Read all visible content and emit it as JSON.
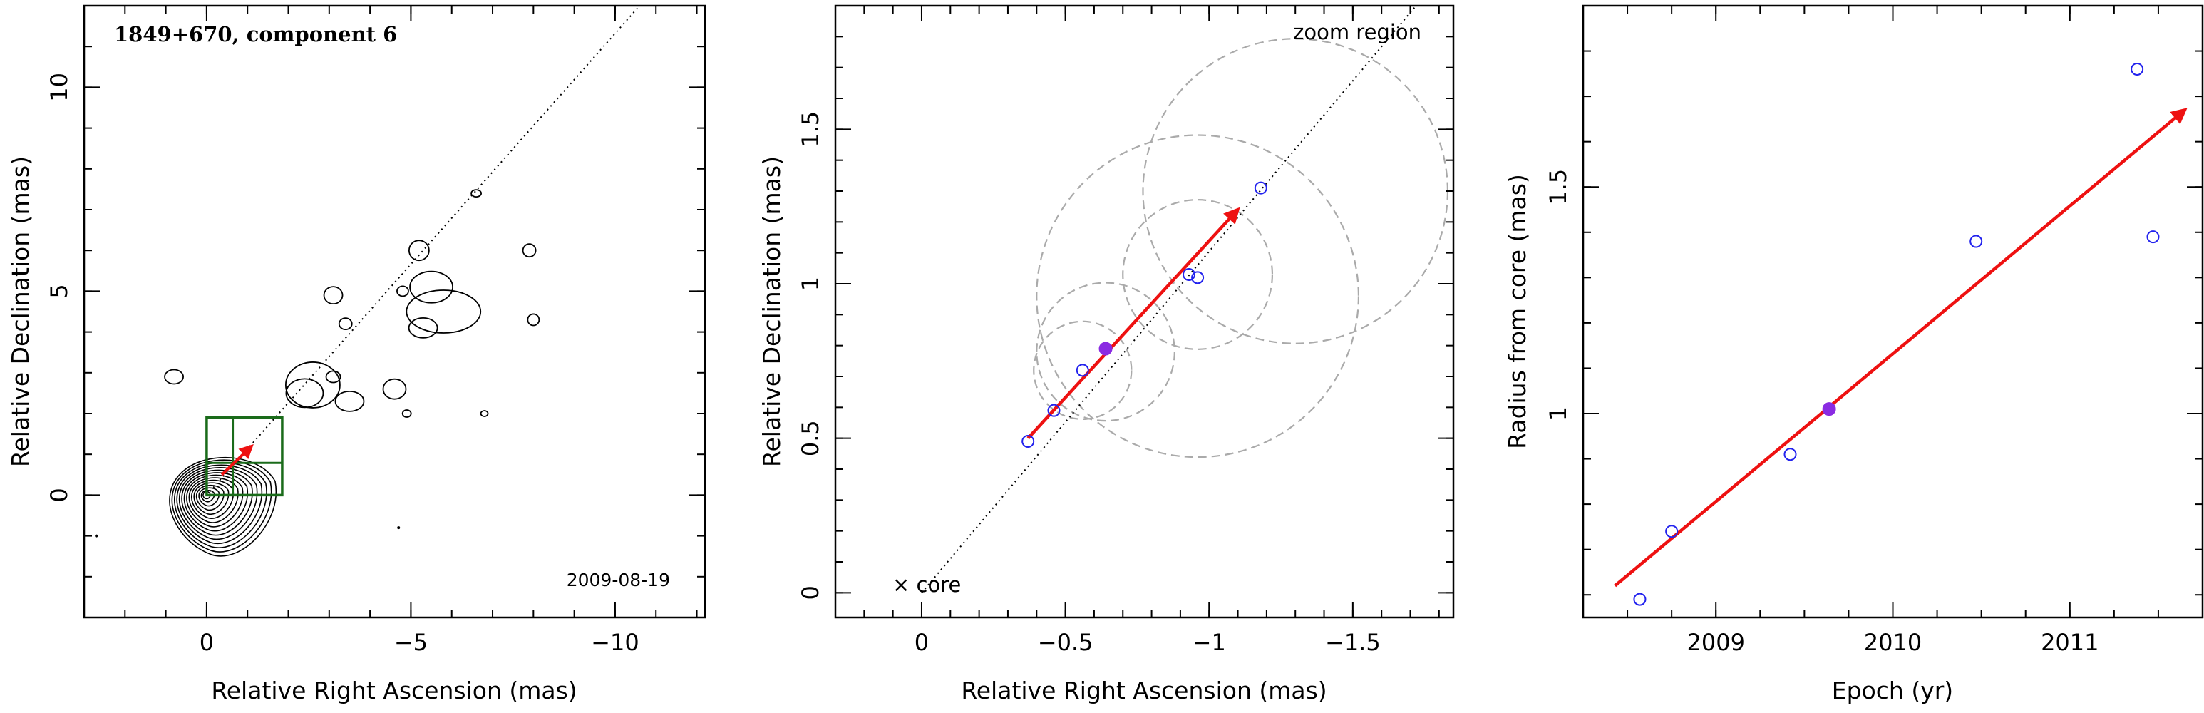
{
  "panels": {
    "map": {
      "title": "1849+670, component 6",
      "epoch_label": "2009-08-19",
      "xlabel": "Relative Right Ascension (mas)",
      "ylabel": "Relative Declination (mas)"
    },
    "zoom": {
      "xlabel": "Relative Right Ascension (mas)",
      "ylabel": "Relative Declination (mas)",
      "annotation_region": "zoom region",
      "annotation_core": "× core"
    },
    "radius": {
      "xlabel": "Epoch (yr)",
      "ylabel": "Radius from core (mas)"
    }
  },
  "colors": {
    "axis": "#000000",
    "contour": "#000000",
    "box": "#1a6b1a",
    "arrow": "#ee1111",
    "open_marker": "#2222ee",
    "filled_marker": "#8a2be2",
    "circle": "#aaaaaa"
  },
  "chart_data": [
    {
      "type": "contour",
      "title": "1849+670, component 6",
      "xlabel": "Relative Right Ascension (mas)",
      "ylabel": "Relative Declination (mas)",
      "xlim": [
        3,
        -12.2
      ],
      "ylim": [
        -3,
        12
      ],
      "x_ticks": [
        0,
        -5,
        -10
      ],
      "y_ticks": [
        0,
        5,
        10
      ],
      "x_ticklabels": [
        "0",
        "−5",
        "−10"
      ],
      "y_ticklabels": [
        "0",
        "5",
        "10"
      ],
      "annotation": "2009-08-19",
      "zoom_box": {
        "x_range": [
          0,
          -1.85
        ],
        "y_range": [
          0,
          1.9
        ],
        "split_x": -0.64,
        "split_y": 0.79
      },
      "jet_direction_line": {
        "from": [
          0,
          0
        ],
        "to": [
          -10.6,
          12
        ]
      },
      "arrow": {
        "from": [
          -0.37,
          0.5
        ],
        "to": [
          -1.1,
          1.2
        ]
      },
      "core": {
        "x": 0,
        "y": 0
      }
    },
    {
      "type": "scatter",
      "xlabel": "Relative Right Ascension (mas)",
      "ylabel": "Relative Declination (mas)",
      "xlim": [
        0.3,
        -1.85
      ],
      "ylim": [
        -0.08,
        1.9
      ],
      "x_ticks": [
        0,
        -0.5,
        -1,
        -1.5
      ],
      "y_ticks": [
        0,
        0.5,
        1,
        1.5
      ],
      "x_ticklabels": [
        "0",
        "−0.5",
        "−1",
        "−1.5"
      ],
      "y_ticklabels": [
        "0",
        "0.5",
        "1",
        "1.5"
      ],
      "open_points": [
        {
          "x": -0.37,
          "y": 0.49
        },
        {
          "x": -0.46,
          "y": 0.59
        },
        {
          "x": -0.56,
          "y": 0.72
        },
        {
          "x": -0.93,
          "y": 1.03
        },
        {
          "x": -0.96,
          "y": 1.02
        },
        {
          "x": -1.18,
          "y": 1.31
        }
      ],
      "filled_point": {
        "x": -0.64,
        "y": 0.79
      },
      "circles": [
        {
          "x": -0.56,
          "y": 0.72,
          "r": 0.17
        },
        {
          "x": -0.64,
          "y": 0.78,
          "r": 0.24
        },
        {
          "x": -0.96,
          "y": 1.03,
          "r": 0.26
        },
        {
          "x": -0.96,
          "y": 0.96,
          "r": 0.56
        },
        {
          "x": -1.3,
          "y": 1.3,
          "r": 0.53
        }
      ],
      "diagonal_line": {
        "from": [
          0,
          0
        ],
        "to": [
          -1.72,
          1.9
        ]
      },
      "arrow": {
        "from": [
          -0.37,
          0.5
        ],
        "to": [
          -1.1,
          1.24
        ]
      },
      "annotations": [
        "zoom region",
        "× core"
      ]
    },
    {
      "type": "scatter",
      "xlabel": "Epoch (yr)",
      "ylabel": "Radius from core (mas)",
      "xlim": [
        2008.25,
        2011.75
      ],
      "ylim": [
        0.55,
        1.9
      ],
      "x_ticks": [
        2009,
        2010,
        2011
      ],
      "y_ticks": [
        1,
        1.5
      ],
      "x_ticklabels": [
        "2009",
        "2010",
        "2011"
      ],
      "y_ticklabels": [
        "1",
        "1.5"
      ],
      "open_points": [
        {
          "x": 2008.57,
          "y": 0.59
        },
        {
          "x": 2008.75,
          "y": 0.74
        },
        {
          "x": 2009.42,
          "y": 0.91
        },
        {
          "x": 2010.47,
          "y": 1.38
        },
        {
          "x": 2011.38,
          "y": 1.76
        },
        {
          "x": 2011.47,
          "y": 1.39
        }
      ],
      "filled_point": {
        "x": 2009.64,
        "y": 1.01
      },
      "fit_arrow": {
        "from": [
          2008.43,
          0.62
        ],
        "to": [
          2011.65,
          1.67
        ]
      }
    }
  ]
}
